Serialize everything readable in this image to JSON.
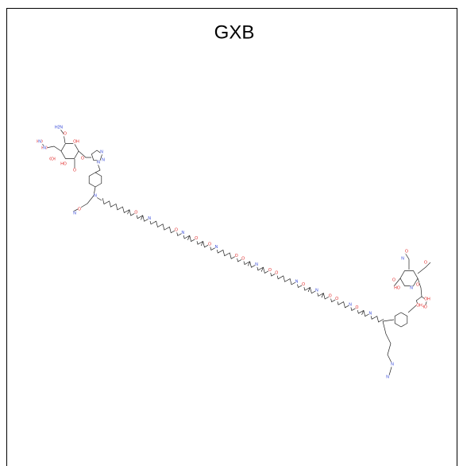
{
  "title": "GXB",
  "atom_labels": [
    "HO",
    "OH",
    "HO",
    "N",
    "O",
    "OH",
    "HO",
    "O",
    "O",
    "N",
    "N",
    "N",
    "O",
    "N",
    "N",
    "O",
    "N",
    "O",
    "N",
    "O",
    "O",
    "N",
    "O",
    "O",
    "N",
    "O",
    "O",
    "N",
    "O",
    "N",
    "O",
    "O",
    "N",
    "O",
    "N",
    "O",
    "N",
    "N",
    "O",
    "HO",
    "O",
    "N",
    "OH",
    "HO",
    "OH",
    "O",
    "N",
    "N",
    "N",
    "O",
    "N",
    "O",
    "H2N"
  ]
}
